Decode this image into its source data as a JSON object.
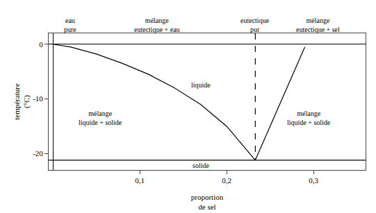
{
  "chart_data": {
    "type": "line",
    "x_label": "proportion\nde sel",
    "y_label": "température\n(°C)",
    "xlim": [
      -0.005,
      0.36
    ],
    "ylim": [
      -23,
      2
    ],
    "xticks": [
      {
        "value": 0.1,
        "label": "0,1"
      },
      {
        "value": 0.2,
        "label": "0,2"
      },
      {
        "value": 0.3,
        "label": "0,3"
      }
    ],
    "yticks": [
      0,
      -10,
      -20
    ],
    "grid": false,
    "color": "#000000",
    "series": [
      {
        "x": [
          0.0,
          0.02,
          0.05,
          0.08,
          0.11,
          0.14,
          0.17,
          0.2,
          0.233
        ],
        "values": [
          0.0,
          -0.5,
          -1.8,
          -3.5,
          -5.5,
          -8.0,
          -11.0,
          -15.0,
          -21.2
        ],
        "line_style": "solid"
      },
      {
        "x": [
          0.233,
          0.29
        ],
        "values": [
          -21.2,
          -0.5
        ],
        "line_style": "solid"
      },
      {
        "x": [
          -0.005,
          0.36
        ],
        "values": [
          -21.2,
          -21.2
        ],
        "line_style": "solid"
      },
      {
        "x": [
          0.233,
          0.233
        ],
        "values": [
          2,
          -21.2
        ],
        "line_style": "dashed"
      }
    ],
    "annotations": [
      {
        "text": "liquide",
        "x": 0.17,
        "y": -7.5
      },
      {
        "text": "solide",
        "x": 0.17,
        "y": -22.2
      },
      {
        "text": "mélange\nliquide + solide",
        "x": 0.055,
        "y": -13.5
      },
      {
        "text": "mélange\nliquide + solide",
        "x": 0.295,
        "y": -13.5
      },
      {
        "text": "eau\npure",
        "x": 0.02,
        "y": 1.8
      },
      {
        "text": "mélange\neutectique + eau",
        "x": 0.12,
        "y": 1.8
      },
      {
        "text": "eutectique\npur",
        "x": 0.233,
        "y": 1.8
      },
      {
        "text": "mélange\neutectique + sel",
        "x": 0.305,
        "y": 1.8
      }
    ]
  }
}
